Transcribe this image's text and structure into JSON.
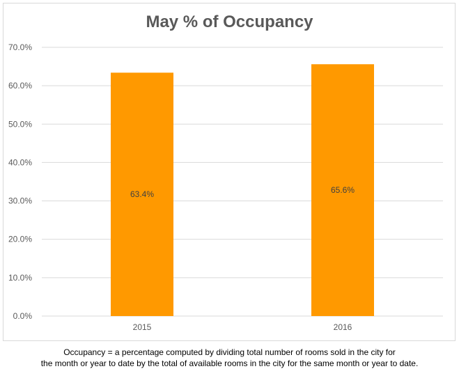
{
  "chart_data": {
    "type": "bar",
    "title": "May % of Occupancy",
    "categories": [
      "2015",
      "2016"
    ],
    "values": [
      63.4,
      65.6
    ],
    "value_labels": [
      "63.4%",
      "65.6%"
    ],
    "ylim": [
      0,
      70
    ],
    "yticks": [
      "0.0%",
      "10.0%",
      "20.0%",
      "30.0%",
      "40.0%",
      "50.0%",
      "60.0%",
      "70.0%"
    ],
    "ytick_values": [
      0,
      10,
      20,
      30,
      40,
      50,
      60,
      70
    ],
    "xlabel": "",
    "ylabel": "",
    "grid": true,
    "legend": "none",
    "colors": {
      "bar": "#FF9900",
      "grid": "#d9d9d9",
      "axis_text": "#595959"
    }
  },
  "footnote": {
    "line1": "Occupancy = a percentage computed by dividing total number of rooms sold in the city for",
    "line2": "the month or year to date by the total of available rooms in the city for the same month or year to date."
  }
}
